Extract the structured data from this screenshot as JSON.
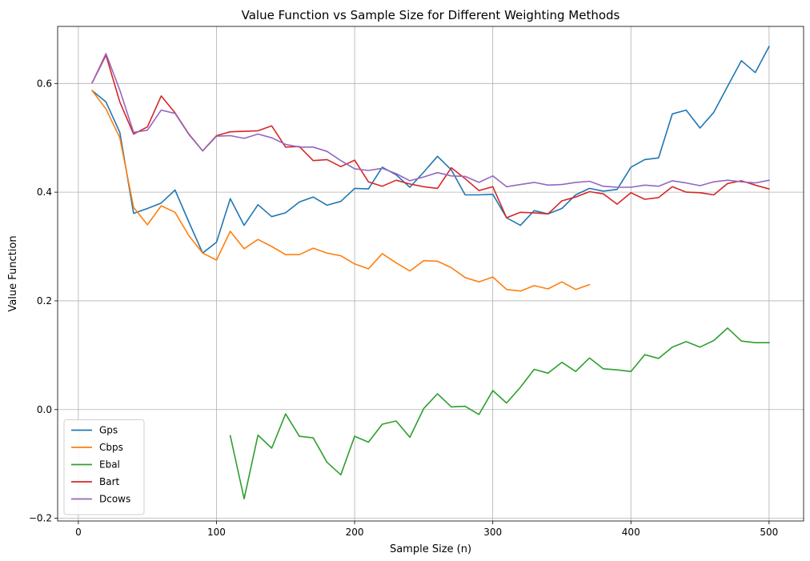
{
  "chart_data": {
    "type": "line",
    "title": "Value Function vs Sample Size for Different Weighting Methods",
    "xlabel": "Sample Size (n)",
    "ylabel": "Value Function",
    "xlim": [
      -15,
      525
    ],
    "ylim": [
      -0.205,
      0.705
    ],
    "xticks": [
      0,
      100,
      200,
      300,
      400,
      500
    ],
    "xtick_labels": [
      "0",
      "100",
      "200",
      "300",
      "400",
      "500"
    ],
    "yticks": [
      -0.2,
      0.0,
      0.2,
      0.4,
      0.6
    ],
    "ytick_labels": [
      "−0.2",
      "0.0",
      "0.2",
      "0.4",
      "0.6"
    ],
    "grid": true,
    "legend_position": "lower-left",
    "series": [
      {
        "name": "Gps",
        "color": "#1f77b4",
        "x": [
          10,
          20,
          30,
          40,
          50,
          60,
          70,
          80,
          90,
          100,
          110,
          120,
          130,
          140,
          150,
          160,
          170,
          180,
          190,
          200,
          210,
          220,
          230,
          240,
          250,
          260,
          270,
          280,
          290,
          300,
          310,
          320,
          330,
          340,
          350,
          360,
          370,
          380,
          390,
          400,
          410,
          420,
          430,
          440,
          450,
          460,
          470,
          480,
          490,
          500
        ],
        "y": [
          0.587,
          0.566,
          0.51,
          0.361,
          0.37,
          0.38,
          0.404,
          0.345,
          0.288,
          0.308,
          0.388,
          0.339,
          0.377,
          0.355,
          0.362,
          0.382,
          0.391,
          0.376,
          0.383,
          0.407,
          0.406,
          0.446,
          0.432,
          0.409,
          0.437,
          0.466,
          0.441,
          0.395,
          0.395,
          0.396,
          0.353,
          0.339,
          0.366,
          0.36,
          0.37,
          0.395,
          0.407,
          0.402,
          0.405,
          0.446,
          0.46,
          0.463,
          0.544,
          0.551,
          0.518,
          0.547,
          0.595,
          0.642,
          0.62,
          0.668
        ]
      },
      {
        "name": "Cbps",
        "color": "#ff7f0e",
        "x": [
          10,
          20,
          30,
          40,
          50,
          60,
          70,
          80,
          90,
          100,
          110,
          120,
          130,
          140,
          150,
          160,
          170,
          180,
          190,
          200,
          210,
          220,
          230,
          240,
          250,
          260,
          270,
          280,
          290,
          300,
          310,
          320,
          330,
          340,
          350,
          360,
          370
        ],
        "y": [
          0.587,
          0.553,
          0.5,
          0.372,
          0.34,
          0.375,
          0.363,
          0.32,
          0.288,
          0.275,
          0.328,
          0.296,
          0.313,
          0.3,
          0.285,
          0.285,
          0.297,
          0.288,
          0.283,
          0.268,
          0.259,
          0.287,
          0.27,
          0.255,
          0.274,
          0.273,
          0.261,
          0.243,
          0.235,
          0.244,
          0.221,
          0.218,
          0.228,
          0.222,
          0.235,
          0.221,
          0.23
        ]
      },
      {
        "name": "Ebal",
        "color": "#2ca02c",
        "x": [
          110,
          120,
          130,
          140,
          150,
          160,
          170,
          180,
          190,
          200,
          210,
          220,
          230,
          240,
          250,
          260,
          270,
          280,
          290,
          300,
          310,
          320,
          330,
          340,
          350,
          360,
          370,
          380,
          390,
          400,
          410,
          420,
          430,
          440,
          450,
          460,
          470,
          480,
          490,
          500
        ],
        "y": [
          -0.048,
          -0.164,
          -0.047,
          -0.071,
          -0.008,
          -0.049,
          -0.052,
          -0.097,
          -0.12,
          -0.049,
          -0.06,
          -0.027,
          -0.021,
          -0.051,
          0.002,
          0.029,
          0.005,
          0.006,
          -0.009,
          0.035,
          0.012,
          0.041,
          0.074,
          0.067,
          0.087,
          0.07,
          0.095,
          0.075,
          0.073,
          0.07,
          0.101,
          0.094,
          0.115,
          0.125,
          0.115,
          0.127,
          0.15,
          0.126,
          0.123,
          0.123
        ]
      },
      {
        "name": "Bart",
        "color": "#d62728",
        "x": [
          10,
          20,
          30,
          40,
          50,
          60,
          70,
          80,
          90,
          100,
          110,
          120,
          130,
          140,
          150,
          160,
          170,
          180,
          190,
          200,
          210,
          220,
          230,
          240,
          250,
          260,
          270,
          280,
          290,
          300,
          310,
          320,
          330,
          340,
          350,
          360,
          370,
          380,
          390,
          400,
          410,
          420,
          430,
          440,
          450,
          460,
          470,
          480,
          490,
          500
        ],
        "y": [
          0.601,
          0.652,
          0.566,
          0.507,
          0.52,
          0.577,
          0.546,
          0.507,
          0.476,
          0.504,
          0.511,
          0.512,
          0.513,
          0.522,
          0.483,
          0.484,
          0.458,
          0.46,
          0.447,
          0.459,
          0.419,
          0.411,
          0.422,
          0.415,
          0.41,
          0.407,
          0.445,
          0.425,
          0.403,
          0.41,
          0.353,
          0.363,
          0.362,
          0.36,
          0.384,
          0.391,
          0.401,
          0.397,
          0.378,
          0.399,
          0.387,
          0.39,
          0.41,
          0.4,
          0.399,
          0.395,
          0.416,
          0.421,
          0.413,
          0.406
        ]
      },
      {
        "name": "Dcows",
        "color": "#9467bd",
        "x": [
          10,
          20,
          30,
          40,
          50,
          60,
          70,
          80,
          90,
          100,
          110,
          120,
          130,
          140,
          150,
          160,
          170,
          180,
          190,
          200,
          210,
          220,
          230,
          240,
          250,
          260,
          270,
          280,
          290,
          300,
          310,
          320,
          330,
          340,
          350,
          360,
          370,
          380,
          390,
          400,
          410,
          420,
          430,
          440,
          450,
          460,
          470,
          480,
          490,
          500
        ],
        "y": [
          0.601,
          0.655,
          0.588,
          0.51,
          0.514,
          0.551,
          0.545,
          0.506,
          0.476,
          0.503,
          0.504,
          0.499,
          0.507,
          0.5,
          0.488,
          0.483,
          0.483,
          0.475,
          0.458,
          0.443,
          0.44,
          0.444,
          0.434,
          0.421,
          0.428,
          0.436,
          0.43,
          0.429,
          0.418,
          0.43,
          0.41,
          0.414,
          0.418,
          0.413,
          0.414,
          0.418,
          0.42,
          0.411,
          0.409,
          0.409,
          0.413,
          0.411,
          0.421,
          0.417,
          0.412,
          0.419,
          0.422,
          0.419,
          0.417,
          0.422
        ]
      }
    ]
  }
}
